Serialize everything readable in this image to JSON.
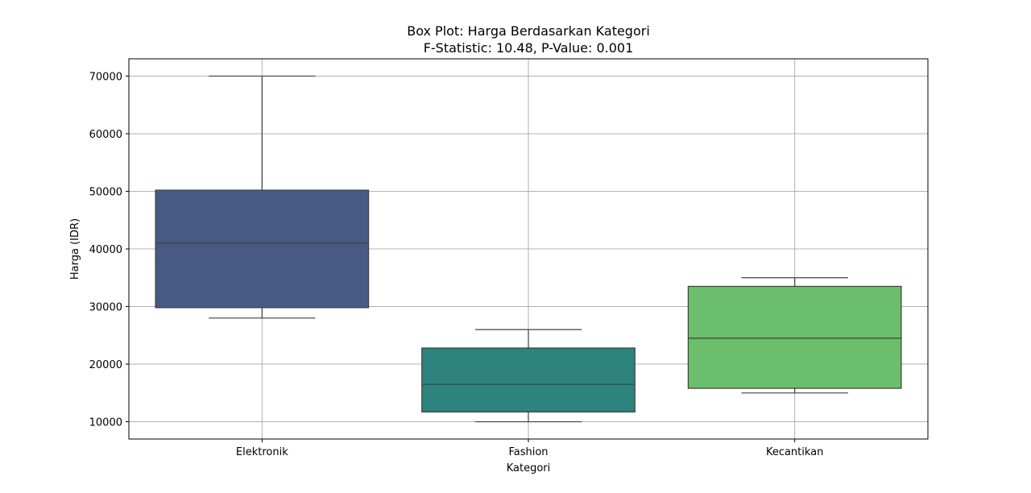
{
  "chart_data": {
    "type": "box",
    "title": "Box Plot: Harga Berdasarkan Kategori",
    "subtitle": "F-Statistic: 10.48, P-Value: 0.001",
    "xlabel": "Kategori",
    "ylabel": "Harga (IDR)",
    "ylim": [
      7000,
      73000
    ],
    "yticks": [
      10000,
      20000,
      30000,
      40000,
      50000,
      60000,
      70000
    ],
    "grid": true,
    "categories": [
      "Elektronik",
      "Fashion",
      "Kecantikan"
    ],
    "boxes": [
      {
        "category": "Elektronik",
        "min": 28000,
        "q1": 29800,
        "median": 41000,
        "q3": 50200,
        "max": 70000,
        "color": "#465A84"
      },
      {
        "category": "Fashion",
        "min": 10000,
        "q1": 11700,
        "median": 16500,
        "q3": 22800,
        "max": 26000,
        "color": "#2D837E"
      },
      {
        "category": "Kecantikan",
        "min": 15000,
        "q1": 15800,
        "median": 24500,
        "q3": 33500,
        "max": 35000,
        "color": "#6BBE6B"
      }
    ]
  }
}
